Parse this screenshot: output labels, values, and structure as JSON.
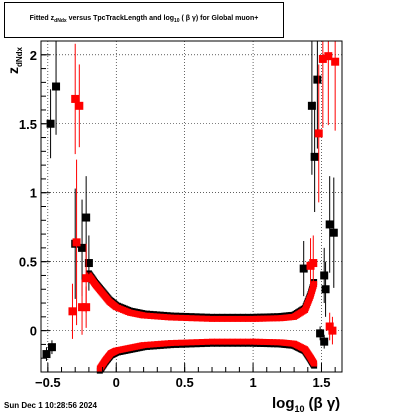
{
  "chart_data": {
    "type": "scatter",
    "title_parts": {
      "pre": "Fitted  z",
      "sub": "dNdx",
      "mid": "  versus TpcTrackLength and log",
      "sub2": "10",
      "post": " ( β γ) for Global muon+"
    },
    "xlabel_main": "log",
    "xlabel_sub": "10",
    "xlabel_post": "(β γ)",
    "ylabel_main": "z",
    "ylabel_sub": "dNdx",
    "xlim": [
      -0.55,
      1.65
    ],
    "ylim": [
      -0.3,
      2.1
    ],
    "x_ticks": [
      -0.5,
      0,
      0.5,
      1,
      1.5
    ],
    "x_tick_labels": [
      "−0.5",
      "0",
      "0.5",
      "1",
      "1.5"
    ],
    "y_ticks": [
      0,
      0.5,
      1,
      1.5,
      2
    ],
    "y_tick_labels": [
      "0",
      "0.5",
      "1",
      "1.5",
      "2"
    ],
    "grid": true,
    "series": [
      {
        "color": "#000000",
        "points": [
          {
            "x": -0.48,
            "y": 1.5,
            "err": 0.25
          },
          {
            "x": -0.44,
            "y": 1.77,
            "err": 0.35
          },
          {
            "x": -0.3,
            "y": 0.63,
            "err": 0.4
          },
          {
            "x": -0.25,
            "y": 0.6,
            "err": 0.35
          },
          {
            "x": -0.22,
            "y": 0.82,
            "err": 0.3
          },
          {
            "x": -0.2,
            "y": 0.49,
            "err": 0.2
          },
          {
            "x": -0.51,
            "y": -0.17,
            "err": 0.05
          },
          {
            "x": -0.47,
            "y": -0.12,
            "err": 0.05
          },
          {
            "x": 1.37,
            "y": 0.45,
            "err": 0.2
          },
          {
            "x": 1.43,
            "y": 1.63,
            "err": 0.5
          },
          {
            "x": 1.45,
            "y": 1.26,
            "err": 0.4
          },
          {
            "x": 1.47,
            "y": 1.82,
            "err": 0.5
          },
          {
            "x": 1.52,
            "y": 0.4,
            "err": 0.2
          },
          {
            "x": 1.53,
            "y": 0.3,
            "err": 0.2
          },
          {
            "x": 1.56,
            "y": 0.77,
            "err": 0.35
          },
          {
            "x": 1.59,
            "y": 0.71,
            "err": 0.4
          },
          {
            "x": 1.52,
            "y": -0.08,
            "err": 0.05
          },
          {
            "x": 1.49,
            "y": -0.02,
            "err": 0.05
          }
        ]
      },
      {
        "color": "#ff0000",
        "points": [
          {
            "x": -0.32,
            "y": 0.14,
            "err": 0.2
          },
          {
            "x": -0.3,
            "y": 1.68,
            "err": 0.4
          },
          {
            "x": -0.27,
            "y": 1.63,
            "err": 0.3
          },
          {
            "x": -0.29,
            "y": 0.64,
            "err": 0.6
          },
          {
            "x": -0.25,
            "y": 0.17,
            "err": 0.2
          },
          {
            "x": -0.22,
            "y": 0.17,
            "err": 0.15
          },
          {
            "x": -0.22,
            "y": 0.38,
            "err": 0.25
          },
          {
            "x": 1.42,
            "y": 0.47,
            "err": 0.2
          },
          {
            "x": 1.44,
            "y": 0.49,
            "err": 0.2
          },
          {
            "x": 1.48,
            "y": 1.43,
            "err": 0.5
          },
          {
            "x": 1.51,
            "y": 1.97,
            "err": 0.5
          },
          {
            "x": 1.55,
            "y": 1.99,
            "err": 0.5
          },
          {
            "x": 1.6,
            "y": 1.95,
            "err": 0.5
          },
          {
            "x": 1.56,
            "y": 0.03,
            "err": 0.1
          },
          {
            "x": 1.58,
            "y": 0.0,
            "err": 0.1
          }
        ]
      }
    ],
    "bands": {
      "upper": [
        {
          "x": -0.2,
          "y": 0.4
        },
        {
          "x": -0.15,
          "y": 0.33
        },
        {
          "x": -0.1,
          "y": 0.27
        },
        {
          "x": -0.05,
          "y": 0.21
        },
        {
          "x": 0.0,
          "y": 0.17
        },
        {
          "x": 0.1,
          "y": 0.13
        },
        {
          "x": 0.2,
          "y": 0.11
        },
        {
          "x": 0.4,
          "y": 0.095
        },
        {
          "x": 0.7,
          "y": 0.085
        },
        {
          "x": 1.0,
          "y": 0.085
        },
        {
          "x": 1.2,
          "y": 0.09
        },
        {
          "x": 1.3,
          "y": 0.1
        },
        {
          "x": 1.38,
          "y": 0.15
        },
        {
          "x": 1.42,
          "y": 0.25
        },
        {
          "x": 1.45,
          "y": 0.35
        }
      ],
      "lower": [
        {
          "x": -0.12,
          "y": -0.28
        },
        {
          "x": -0.08,
          "y": -0.22
        },
        {
          "x": -0.04,
          "y": -0.17
        },
        {
          "x": 0.0,
          "y": -0.15
        },
        {
          "x": 0.1,
          "y": -0.13
        },
        {
          "x": 0.2,
          "y": -0.11
        },
        {
          "x": 0.4,
          "y": -0.095
        },
        {
          "x": 0.7,
          "y": -0.085
        },
        {
          "x": 1.0,
          "y": -0.085
        },
        {
          "x": 1.2,
          "y": -0.09
        },
        {
          "x": 1.3,
          "y": -0.1
        },
        {
          "x": 1.38,
          "y": -0.14
        },
        {
          "x": 1.42,
          "y": -0.2
        },
        {
          "x": 1.45,
          "y": -0.25
        }
      ]
    }
  },
  "footer": {
    "timestamp": "Sun Dec  1 10:28:56 2024"
  }
}
